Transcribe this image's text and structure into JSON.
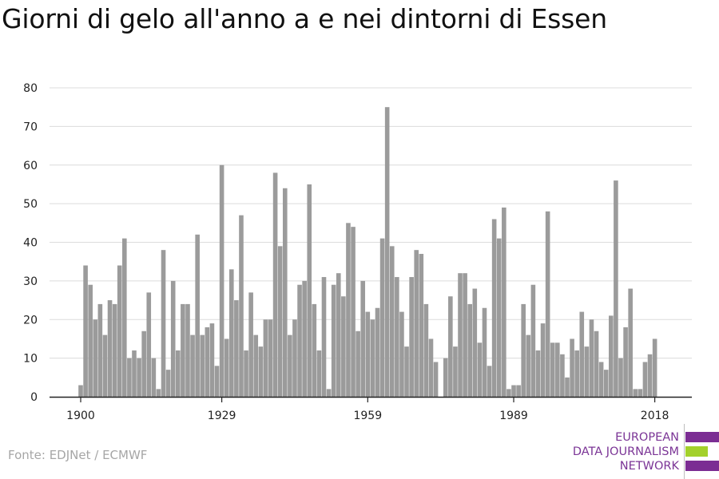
{
  "title": "Giorni di gelo all'anno a e nei dintorni di Essen",
  "source": "Fonte: EDJNet / ECMWF",
  "logo": {
    "line1": "EUROPEAN",
    "line2": "DATA JOURNALISM",
    "line3": "NETWORK",
    "colors": {
      "purple": "#7b2d93",
      "green": "#a3d12b"
    }
  },
  "colors": {
    "bar": "#9b9b9b",
    "grid": "#dcdcdc",
    "axis": "#222222"
  },
  "chart_data": {
    "type": "bar",
    "title": "Giorni di gelo all'anno a e nei dintorni di Essen",
    "xlabel": "",
    "ylabel": "",
    "ylim": [
      0,
      80
    ],
    "yticks": [
      0,
      10,
      20,
      30,
      40,
      50,
      60,
      70,
      80
    ],
    "xticks": [
      1900,
      1929,
      1959,
      1989,
      2018
    ],
    "grid": true,
    "categories": [
      1900,
      1901,
      1902,
      1903,
      1904,
      1905,
      1906,
      1907,
      1908,
      1909,
      1910,
      1911,
      1912,
      1913,
      1914,
      1915,
      1916,
      1917,
      1918,
      1919,
      1920,
      1921,
      1922,
      1923,
      1924,
      1925,
      1926,
      1927,
      1928,
      1929,
      1930,
      1931,
      1932,
      1933,
      1934,
      1935,
      1936,
      1937,
      1938,
      1939,
      1940,
      1941,
      1942,
      1943,
      1944,
      1945,
      1946,
      1947,
      1948,
      1949,
      1950,
      1951,
      1952,
      1953,
      1954,
      1955,
      1956,
      1957,
      1958,
      1959,
      1960,
      1961,
      1962,
      1963,
      1964,
      1965,
      1966,
      1967,
      1968,
      1969,
      1970,
      1971,
      1972,
      1973,
      1974,
      1975,
      1976,
      1977,
      1978,
      1979,
      1980,
      1981,
      1982,
      1983,
      1984,
      1985,
      1986,
      1987,
      1988,
      1989,
      1990,
      1991,
      1992,
      1993,
      1994,
      1995,
      1996,
      1997,
      1998,
      1999,
      2000,
      2001,
      2002,
      2003,
      2004,
      2005,
      2006,
      2007,
      2008,
      2009,
      2010,
      2011,
      2012,
      2013,
      2014,
      2015,
      2016,
      2017,
      2018
    ],
    "values": [
      3,
      34,
      29,
      20,
      24,
      16,
      25,
      24,
      34,
      41,
      10,
      12,
      10,
      17,
      27,
      10,
      2,
      38,
      7,
      30,
      12,
      24,
      24,
      16,
      42,
      16,
      18,
      19,
      8,
      60,
      15,
      33,
      25,
      47,
      12,
      27,
      16,
      13,
      20,
      20,
      58,
      39,
      54,
      16,
      20,
      29,
      30,
      55,
      24,
      12,
      31,
      2,
      29,
      32,
      26,
      45,
      44,
      17,
      30,
      22,
      20,
      23,
      41,
      75,
      39,
      31,
      22,
      13,
      31,
      38,
      37,
      24,
      15,
      9,
      0,
      10,
      26,
      13,
      32,
      32,
      24,
      28,
      14,
      23,
      8,
      46,
      41,
      49,
      2,
      3,
      3,
      24,
      16,
      29,
      12,
      19,
      48,
      14,
      14,
      11,
      5,
      15,
      12,
      22,
      13,
      20,
      17,
      9,
      7,
      21,
      56,
      10,
      18,
      28,
      2,
      2,
      9,
      11,
      15
    ]
  }
}
